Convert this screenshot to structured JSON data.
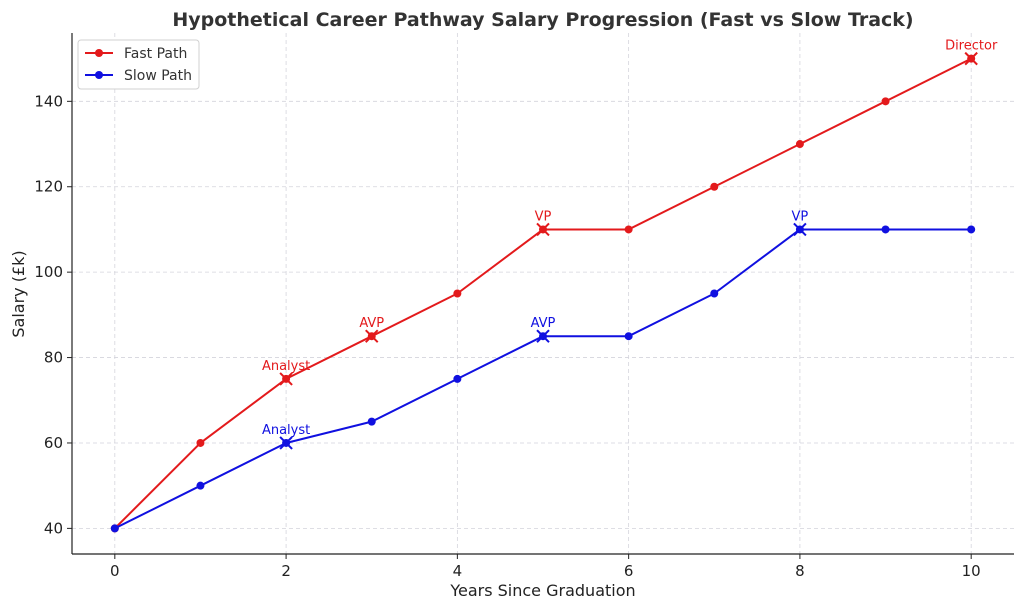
{
  "chart_data": {
    "type": "line",
    "title": "Hypothetical Career Pathway Salary Progression (Fast vs Slow Track)",
    "xlabel": "Years Since Graduation",
    "ylabel": "Salary (£k)",
    "xlim": [
      -0.5,
      10.5
    ],
    "ylim": [
      34,
      156
    ],
    "xticks": [
      0,
      2,
      4,
      6,
      8,
      10
    ],
    "yticks": [
      40,
      60,
      80,
      100,
      120,
      140
    ],
    "grid": true,
    "legend_position": "top-left",
    "x": [
      0,
      1,
      2,
      3,
      4,
      5,
      6,
      7,
      8,
      9,
      10
    ],
    "series": [
      {
        "name": "Fast Path",
        "color": "#e31a1c",
        "values": [
          40,
          60,
          75,
          85,
          95,
          110,
          110,
          120,
          130,
          140,
          150
        ],
        "milestones": [
          {
            "x": 2,
            "y": 75,
            "label": "Analyst"
          },
          {
            "x": 3,
            "y": 85,
            "label": "AVP"
          },
          {
            "x": 5,
            "y": 110,
            "label": "VP"
          },
          {
            "x": 10,
            "y": 150,
            "label": "Director"
          }
        ]
      },
      {
        "name": "Slow Path",
        "color": "#1010e0",
        "values": [
          40,
          50,
          60,
          65,
          75,
          85,
          85,
          95,
          110,
          110,
          110
        ],
        "milestones": [
          {
            "x": 2,
            "y": 60,
            "label": "Analyst"
          },
          {
            "x": 5,
            "y": 85,
            "label": "AVP"
          },
          {
            "x": 8,
            "y": 110,
            "label": "VP"
          }
        ]
      }
    ]
  }
}
